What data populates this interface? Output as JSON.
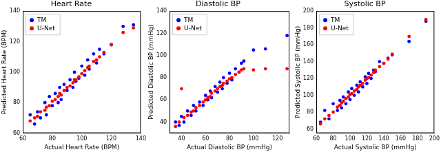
{
  "chart_data": [
    {
      "type": "scatter",
      "title": "Heart Rate",
      "x_label": "Actual Heart Rate (BPM)",
      "y_label": "Predicted Heart Rate (BPM)",
      "x": [
        65,
        68,
        70,
        72,
        75,
        76,
        78,
        80,
        82,
        84,
        85,
        86,
        88,
        90,
        92,
        94,
        95,
        96,
        98,
        100,
        102,
        104,
        105,
        108,
        110,
        112,
        115,
        120,
        128,
        135
      ],
      "series": [
        {
          "name": "TM",
          "color": "#0000ff",
          "marker": "circle",
          "values": [
            72,
            66,
            74,
            70,
            80,
            72,
            84,
            78,
            86,
            80,
            90,
            82,
            92,
            88,
            95,
            90,
            100,
            94,
            96,
            104,
            98,
            108,
            102,
            112,
            106,
            115,
            112,
            118,
            130,
            131
          ]
        },
        {
          "name": "U-Net",
          "color": "#ff0000",
          "marker": "circle",
          "values": [
            68,
            70,
            71,
            74,
            75,
            77,
            78,
            81,
            82,
            84,
            86,
            85,
            88,
            90,
            91,
            93,
            95,
            95,
            97,
            99,
            101,
            103,
            104,
            107,
            108,
            110,
            113,
            118,
            126,
            129
          ]
        }
      ],
      "xlim": [
        60,
        140
      ],
      "xticks": [
        60,
        80,
        100,
        120,
        140
      ],
      "ylim": [
        60,
        140
      ],
      "yticks": [
        60,
        80,
        100,
        120,
        140
      ],
      "grid": false,
      "legend": "upper left"
    },
    {
      "type": "scatter",
      "title": "Diastolic BP",
      "x_label": "Actual Diastolic BP (mmHg)",
      "y_label": "Predicted Diastolic BP (mmHg)",
      "x": [
        35,
        38,
        40,
        42,
        45,
        48,
        50,
        52,
        55,
        58,
        60,
        62,
        64,
        65,
        68,
        70,
        72,
        74,
        75,
        78,
        80,
        82,
        85,
        88,
        90,
        92,
        100,
        110,
        128
      ],
      "series": [
        {
          "name": "TM",
          "color": "#0000ff",
          "marker": "circle",
          "values": [
            40,
            37,
            45,
            40,
            50,
            46,
            55,
            50,
            58,
            55,
            64,
            60,
            68,
            62,
            72,
            67,
            76,
            70,
            80,
            75,
            84,
            78,
            88,
            85,
            93,
            95,
            105,
            106,
            118
          ]
        },
        {
          "name": "U-Net",
          "color": "#ff0000",
          "marker": "circle",
          "values": [
            36,
            40,
            70,
            44,
            46,
            49,
            50,
            53,
            55,
            58,
            60,
            62,
            63,
            66,
            68,
            70,
            72,
            73,
            75,
            77,
            79,
            80,
            83,
            85,
            87,
            88,
            87,
            88,
            88
          ]
        }
      ],
      "xlim": [
        30,
        130
      ],
      "xticks": [
        40,
        60,
        80,
        100,
        120
      ],
      "ylim": [
        30,
        140
      ],
      "yticks": [
        40,
        60,
        80,
        100,
        120,
        140
      ],
      "grid": false,
      "legend": "upper left"
    },
    {
      "type": "scatter",
      "title": "Systolic BP",
      "x_label": "Actual Systolic BP (mmHg)",
      "y_label": "Predicted Systolic BP (mmHg)",
      "x": [
        65,
        70,
        75,
        80,
        85,
        88,
        90,
        92,
        95,
        98,
        100,
        102,
        105,
        108,
        110,
        112,
        115,
        118,
        120,
        122,
        125,
        128,
        130,
        135,
        140,
        145,
        150,
        170,
        190
      ],
      "series": [
        {
          "name": "TM",
          "color": "#0000ff",
          "marker": "circle",
          "values": [
            68,
            82,
            72,
            90,
            82,
            94,
            85,
            98,
            90,
            104,
            95,
            108,
            100,
            112,
            104,
            116,
            110,
            122,
            114,
            126,
            120,
            130,
            128,
            140,
            138,
            144,
            148,
            164,
            188
          ]
        },
        {
          "name": "U-Net",
          "color": "#ff0000",
          "marker": "circle",
          "values": [
            66,
            72,
            76,
            80,
            86,
            88,
            91,
            93,
            96,
            98,
            101,
            102,
            105,
            107,
            110,
            112,
            114,
            118,
            120,
            121,
            124,
            127,
            130,
            134,
            138,
            143,
            149,
            170,
            190
          ]
        }
      ],
      "xlim": [
        60,
        200
      ],
      "xticks": [
        60,
        80,
        100,
        120,
        140,
        160,
        180,
        200
      ],
      "ylim": [
        55,
        200
      ],
      "yticks": [
        60,
        80,
        100,
        120,
        140,
        160,
        180,
        200
      ],
      "grid": false,
      "legend": "upper left"
    }
  ]
}
